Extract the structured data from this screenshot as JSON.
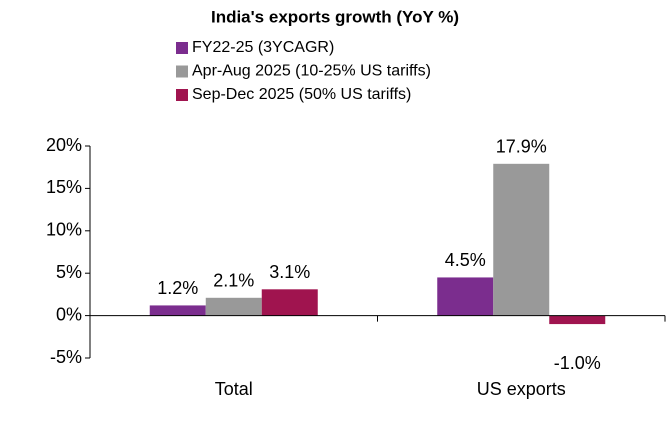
{
  "chart_data": {
    "type": "bar",
    "title": "India's exports growth (YoY %)",
    "categories": [
      "Total",
      "US exports"
    ],
    "series": [
      {
        "name": "FY22-25 (3YCAGR)",
        "color": "#7b2d8e",
        "values": [
          1.2,
          4.5
        ],
        "value_labels": [
          "1.2%",
          "4.5%"
        ]
      },
      {
        "name": "Apr-Aug 2025 (10-25% US tariffs)",
        "color": "#999999",
        "values": [
          2.1,
          17.9
        ],
        "value_labels": [
          "2.1%",
          "17.9%"
        ]
      },
      {
        "name": "Sep-Dec 2025 (50% US tariffs)",
        "color": "#a0144f",
        "values": [
          3.1,
          -1.0
        ],
        "value_labels": [
          "3.1%",
          "-1.0%"
        ]
      }
    ],
    "ylim": [
      -5,
      20
    ],
    "yticks": [
      {
        "value": -5,
        "label": "-5%"
      },
      {
        "value": 0,
        "label": "0%"
      },
      {
        "value": 5,
        "label": "5%"
      },
      {
        "value": 10,
        "label": "10%"
      },
      {
        "value": 15,
        "label": "15%"
      },
      {
        "value": 20,
        "label": "20%"
      }
    ],
    "grid": false,
    "legend": "top"
  }
}
